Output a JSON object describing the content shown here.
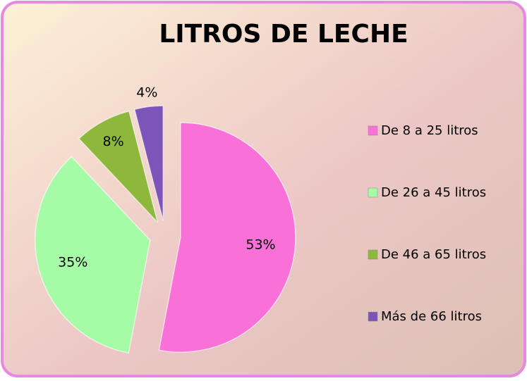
{
  "chart_data": {
    "type": "pie",
    "title": "LITROS DE LECHE",
    "categories": [
      "De 8 a 25 litros",
      "De 26 a 45 litros",
      "De 46 a 65 litros",
      "Más de 66 litros"
    ],
    "values": [
      53,
      35,
      8,
      4
    ],
    "value_labels": [
      "53%",
      "35%",
      "8%",
      "4%"
    ],
    "colors": [
      "#f870d8",
      "#a6fba6",
      "#8db83c",
      "#7d55b8"
    ],
    "legend": "right"
  }
}
